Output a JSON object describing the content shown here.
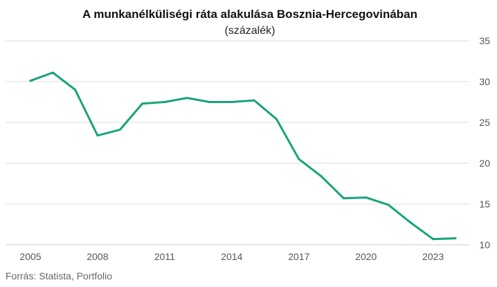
{
  "chart_data": {
    "type": "line",
    "title": "A munkanélküliségi ráta alakulása Bosznia-Hercegovinában",
    "subtitle": "(százalék)",
    "source": "Forrás: Statista, Portfolio",
    "x": [
      2005,
      2006,
      2007,
      2008,
      2009,
      2010,
      2011,
      2012,
      2013,
      2014,
      2015,
      2016,
      2017,
      2018,
      2019,
      2020,
      2021,
      2022,
      2023,
      2024
    ],
    "series": [
      {
        "values": [
          30.1,
          31.1,
          29.0,
          23.4,
          24.1,
          27.3,
          27.5,
          28.0,
          27.5,
          27.5,
          27.7,
          25.4,
          20.5,
          18.4,
          15.7,
          15.8,
          14.9,
          12.7,
          10.7,
          10.8
        ],
        "color": "#17a37a"
      }
    ],
    "xticks": [
      "2005",
      "2008",
      "2011",
      "2014",
      "2017",
      "2020",
      "2023"
    ],
    "yticks": [
      "10",
      "15",
      "20",
      "25",
      "30",
      "35"
    ],
    "ylim": [
      10,
      35
    ],
    "xlim": [
      2005,
      2024
    ],
    "grid": true,
    "y_axis_side": "right"
  }
}
